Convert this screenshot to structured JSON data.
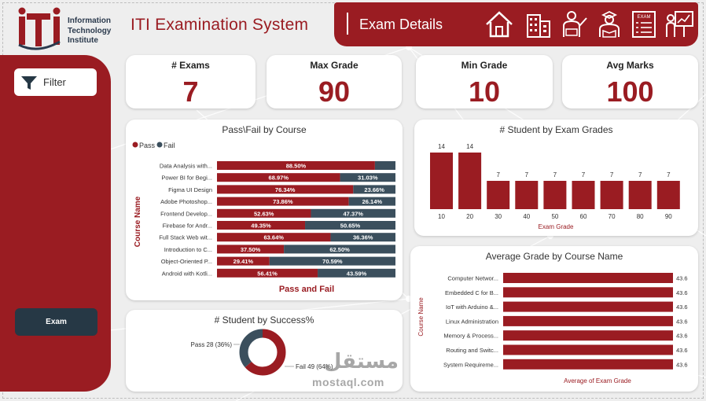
{
  "logo": {
    "line1": "Information",
    "line2": "Technology",
    "line3": "Institute"
  },
  "app_title": "ITI Examination System",
  "header": {
    "title": "Exam Details",
    "nav_icons": [
      "home-icon",
      "building-icon",
      "instructor-icon",
      "student-icon",
      "exam-icon",
      "presentation-icon"
    ],
    "exam_icon_label": "EXAM"
  },
  "sidebar": {
    "filter_label": "Filter",
    "exam_button_label": "Exam"
  },
  "colors": {
    "accent": "#9a1c22",
    "dark": "#3b4f5d",
    "sidebar_button": "#263845"
  },
  "kpis": [
    {
      "label": "# Exams",
      "value": "7"
    },
    {
      "label": "Max Grade",
      "value": "90"
    },
    {
      "label": "Min Grade",
      "value": "10"
    },
    {
      "label": "Avg Marks",
      "value": "100"
    }
  ],
  "watermark": {
    "arabic": "مستقل",
    "latin": "mostaql.com"
  },
  "chart_data": [
    {
      "type": "bar",
      "orientation": "horizontal-stacked-100",
      "title": "Pass\\Fail by Course",
      "xlabel": "Pass and Fail",
      "ylabel": "Course Name",
      "legend": {
        "placement": "top-left",
        "entries": [
          "Pass",
          "Fail"
        ]
      },
      "categories": [
        "Data Analysis with...",
        "Power BI for Begi...",
        "Figma UI Design",
        "Adobe Photoshop...",
        "Frontend Develop...",
        "Firebase for Andr...",
        "Full Stack Web wit...",
        "Introduction to C...",
        "Object-Oriented P...",
        "Android with Kotli..."
      ],
      "series": [
        {
          "name": "Pass",
          "color": "#9a1c22",
          "values": [
            88.5,
            68.97,
            76.34,
            73.86,
            52.63,
            49.35,
            63.64,
            37.5,
            29.41,
            56.41
          ],
          "labels": [
            "88.50%",
            "68.97%",
            "76.34%",
            "73.86%",
            "52.63%",
            "49.35%",
            "63.64%",
            "37.50%",
            "29.41%",
            "56.41%"
          ]
        },
        {
          "name": "Fail",
          "color": "#3b4f5d",
          "values": [
            11.5,
            31.03,
            23.66,
            26.14,
            47.37,
            50.65,
            36.36,
            62.5,
            70.59,
            43.59
          ],
          "labels": [
            "",
            "31.03%",
            "23.66%",
            "26.14%",
            "47.37%",
            "50.65%",
            "36.36%",
            "62.50%",
            "70.59%",
            "43.59%"
          ]
        }
      ]
    },
    {
      "type": "bar",
      "title": "# Student by Exam Grades",
      "xlabel": "Exam Grade",
      "ylabel": "",
      "categories": [
        "10",
        "20",
        "30",
        "40",
        "50",
        "60",
        "70",
        "80",
        "90"
      ],
      "values": [
        14,
        14,
        7,
        7,
        7,
        7,
        7,
        7,
        7
      ],
      "ylim": [
        0,
        14
      ],
      "color": "#9a1c22"
    },
    {
      "type": "pie",
      "style": "donut",
      "title": "# Student by Success%",
      "slices": [
        {
          "name": "Pass",
          "value": 28,
          "label": "Pass 28 (36%)",
          "color": "#3b4f5d"
        },
        {
          "name": "Fail",
          "value": 49,
          "label": "Fail 49 (64%)",
          "color": "#9a1c22"
        }
      ]
    },
    {
      "type": "bar",
      "orientation": "horizontal",
      "title": "Average Grade by Course Name",
      "xlabel": "Average of Exam  Grade",
      "ylabel": "Course Name",
      "categories": [
        "Computer Networ...",
        "Embedded C for B...",
        "IoT with Arduino &...",
        "Linux Administration",
        "Memory & Process...",
        "Routing and Switc...",
        "System Requireme..."
      ],
      "values": [
        43.6,
        43.6,
        43.6,
        43.6,
        43.6,
        43.6,
        43.6
      ],
      "xlim": [
        0,
        43.6
      ],
      "color": "#9a1c22"
    }
  ]
}
